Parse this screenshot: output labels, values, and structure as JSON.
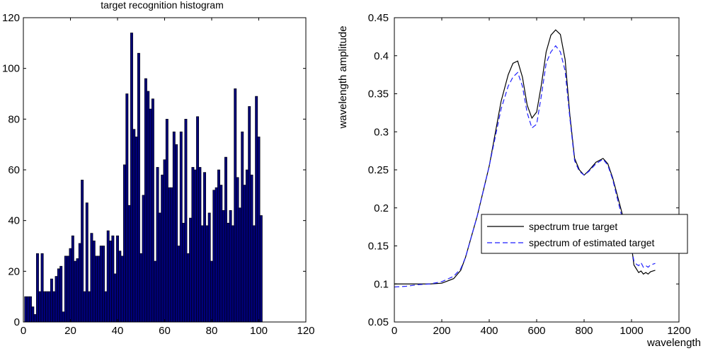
{
  "chart_data": [
    {
      "type": "bar",
      "title": "target recognition histogram",
      "xlabel": "",
      "ylabel": "",
      "xlim": [
        0,
        120
      ],
      "ylim": [
        0,
        120
      ],
      "xticks": [
        0,
        20,
        40,
        60,
        80,
        100,
        120
      ],
      "yticks": [
        0,
        20,
        40,
        60,
        80,
        100,
        120
      ],
      "bar_color": "#00007a",
      "x": [
        1,
        2,
        3,
        4,
        5,
        6,
        7,
        8,
        9,
        10,
        11,
        12,
        13,
        14,
        15,
        16,
        17,
        18,
        19,
        20,
        21,
        22,
        23,
        24,
        25,
        26,
        27,
        28,
        29,
        30,
        31,
        32,
        33,
        34,
        35,
        36,
        37,
        38,
        39,
        40,
        41,
        42,
        43,
        44,
        45,
        46,
        47,
        48,
        49,
        50,
        51,
        52,
        53,
        54,
        55,
        56,
        57,
        58,
        59,
        60,
        61,
        62,
        63,
        64,
        65,
        66,
        67,
        68,
        69,
        70,
        71,
        72,
        73,
        74,
        75,
        76,
        77,
        78,
        79,
        80,
        81,
        82,
        83,
        84,
        85,
        86,
        87,
        88,
        89,
        90,
        91,
        92,
        93,
        94,
        95,
        96,
        97,
        98,
        99,
        100,
        101
      ],
      "values": [
        10,
        10,
        10,
        6,
        3,
        27,
        12,
        27,
        12,
        12,
        12,
        17,
        12,
        18,
        21,
        22,
        4,
        26,
        26,
        29,
        34,
        24,
        25,
        31,
        56,
        12,
        47,
        12,
        35,
        32,
        26,
        26,
        30,
        30,
        12,
        36,
        32,
        34,
        19,
        34,
        28,
        26,
        62,
        90,
        46,
        114,
        76,
        73,
        106,
        27,
        50,
        96,
        91,
        84,
        88,
        24,
        61,
        43,
        58,
        64,
        80,
        53,
        53,
        75,
        70,
        30,
        75,
        39,
        80,
        27,
        41,
        61,
        60,
        81,
        61,
        38,
        59,
        38,
        43,
        24,
        52,
        53,
        60,
        54,
        44,
        65,
        39,
        44,
        38,
        92,
        57,
        45,
        75,
        54,
        60,
        85,
        58,
        38,
        89,
        73,
        42
      ]
    },
    {
      "type": "line",
      "title": "",
      "xlabel": "wavelength",
      "ylabel": "wavelength amplitude",
      "xlim": [
        0,
        1200
      ],
      "ylim": [
        0.05,
        0.45
      ],
      "xticks": [
        0,
        200,
        400,
        600,
        800,
        1000,
        1200
      ],
      "yticks": [
        0.05,
        0.1,
        0.15,
        0.2,
        0.25,
        0.3,
        0.35,
        0.4,
        0.45
      ],
      "legend_position": "center-right",
      "series": [
        {
          "name": "spectrum true target",
          "color": "#000000",
          "style": "solid",
          "x": [
            0,
            50,
            100,
            150,
            200,
            250,
            280,
            300,
            350,
            400,
            450,
            480,
            500,
            520,
            540,
            560,
            580,
            600,
            620,
            640,
            660,
            680,
            700,
            720,
            740,
            760,
            780,
            800,
            820,
            850,
            880,
            900,
            920,
            950,
            975,
            1000,
            1010,
            1020,
            1030,
            1040,
            1050,
            1060,
            1070,
            1080,
            1090,
            1100
          ],
          "y": [
            0.1,
            0.1,
            0.1,
            0.1,
            0.101,
            0.107,
            0.118,
            0.135,
            0.19,
            0.255,
            0.34,
            0.375,
            0.39,
            0.393,
            0.372,
            0.335,
            0.318,
            0.326,
            0.362,
            0.405,
            0.427,
            0.434,
            0.428,
            0.395,
            0.322,
            0.265,
            0.25,
            0.243,
            0.249,
            0.26,
            0.265,
            0.258,
            0.24,
            0.205,
            0.175,
            0.15,
            0.125,
            0.12,
            0.115,
            0.117,
            0.113,
            0.115,
            0.113,
            0.116,
            0.117,
            0.118
          ]
        },
        {
          "name": "spectrum of estimated target",
          "color": "#1f1fff",
          "style": "dashed",
          "x": [
            0,
            50,
            100,
            150,
            200,
            250,
            280,
            300,
            350,
            400,
            450,
            480,
            500,
            520,
            540,
            560,
            580,
            600,
            620,
            640,
            660,
            680,
            700,
            720,
            740,
            760,
            780,
            800,
            820,
            850,
            880,
            900,
            920,
            950,
            975,
            1000,
            1010,
            1020,
            1030,
            1040,
            1050,
            1060,
            1070,
            1080,
            1090,
            1100
          ],
          "y": [
            0.096,
            0.097,
            0.099,
            0.1,
            0.103,
            0.11,
            0.12,
            0.135,
            0.19,
            0.255,
            0.33,
            0.36,
            0.372,
            0.378,
            0.36,
            0.325,
            0.305,
            0.31,
            0.348,
            0.39,
            0.405,
            0.413,
            0.405,
            0.38,
            0.318,
            0.262,
            0.248,
            0.243,
            0.248,
            0.258,
            0.264,
            0.256,
            0.238,
            0.2,
            0.17,
            0.147,
            0.13,
            0.126,
            0.124,
            0.128,
            0.122,
            0.124,
            0.122,
            0.125,
            0.126,
            0.127
          ]
        }
      ]
    }
  ]
}
